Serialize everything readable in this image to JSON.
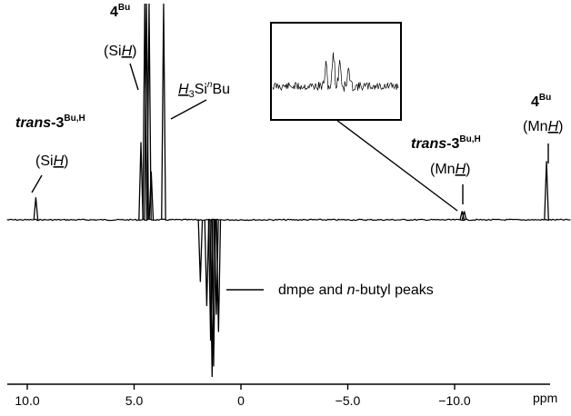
{
  "chart_data": {
    "type": "line",
    "title": "",
    "xlabel": "ppm",
    "ylabel": "",
    "xlim": [
      10.5,
      -11.2
    ],
    "ylim": [
      -1.0,
      1.0
    ],
    "x_reversed": true,
    "x_ticks": [
      {
        "value": 10.0,
        "label": "10.0"
      },
      {
        "value": 5.0,
        "label": "5.0"
      },
      {
        "value": 0.0,
        "label": "0"
      },
      {
        "value": -5.0,
        "label": "−5.0"
      },
      {
        "value": -10.0,
        "label": "−10.0"
      }
    ],
    "peaks": [
      {
        "x": 9.6,
        "y": 0.13
      },
      {
        "x": 4.68,
        "y": 0.45
      },
      {
        "x": 4.5,
        "y": 1.3
      },
      {
        "x": 4.42,
        "y": 1.3
      },
      {
        "x": 4.3,
        "y": 1.3
      },
      {
        "x": 4.2,
        "y": 0.28
      },
      {
        "x": 3.62,
        "y": 1.3
      },
      {
        "x": 1.9,
        "y": -0.36
      },
      {
        "x": 1.6,
        "y": -0.5
      },
      {
        "x": 1.42,
        "y": -0.7
      },
      {
        "x": 1.35,
        "y": -1.0
      },
      {
        "x": 1.28,
        "y": -0.85
      },
      {
        "x": 1.15,
        "y": -0.55
      },
      {
        "x": 1.05,
        "y": -0.65
      },
      {
        "x": -10.45,
        "y": 0.05
      },
      {
        "x": -10.35,
        "y": 0.05
      },
      {
        "x": -14.3,
        "y": 0.34
      }
    ],
    "labels": [
      {
        "id": "4bu-sih",
        "main": "4",
        "sup": "Bu",
        "sub": "(Si",
        "h": "H",
        "close": ")"
      },
      {
        "id": "h3sibu",
        "h": "H",
        "sub3": "3",
        "mid": "Si",
        "supn": "n",
        "end": "Bu"
      },
      {
        "id": "trans-sih",
        "main_i": "trans",
        "main": "-3",
        "sup": "Bu,H",
        "sub": "(Si",
        "h": "H",
        "close": ")"
      },
      {
        "id": "trans-mnh",
        "main_i": "trans",
        "main": "-3",
        "sup": "Bu,H",
        "sub": "(Mn",
        "h": "H",
        "close": ")"
      },
      {
        "id": "4bu-mnh",
        "main": "4",
        "sup": "Bu",
        "sub": "(Mn",
        "h": "H",
        "close": ")"
      },
      {
        "id": "dmpe",
        "pre": "dmpe and ",
        "it": "n",
        "post": "-butyl peaks"
      }
    ]
  }
}
